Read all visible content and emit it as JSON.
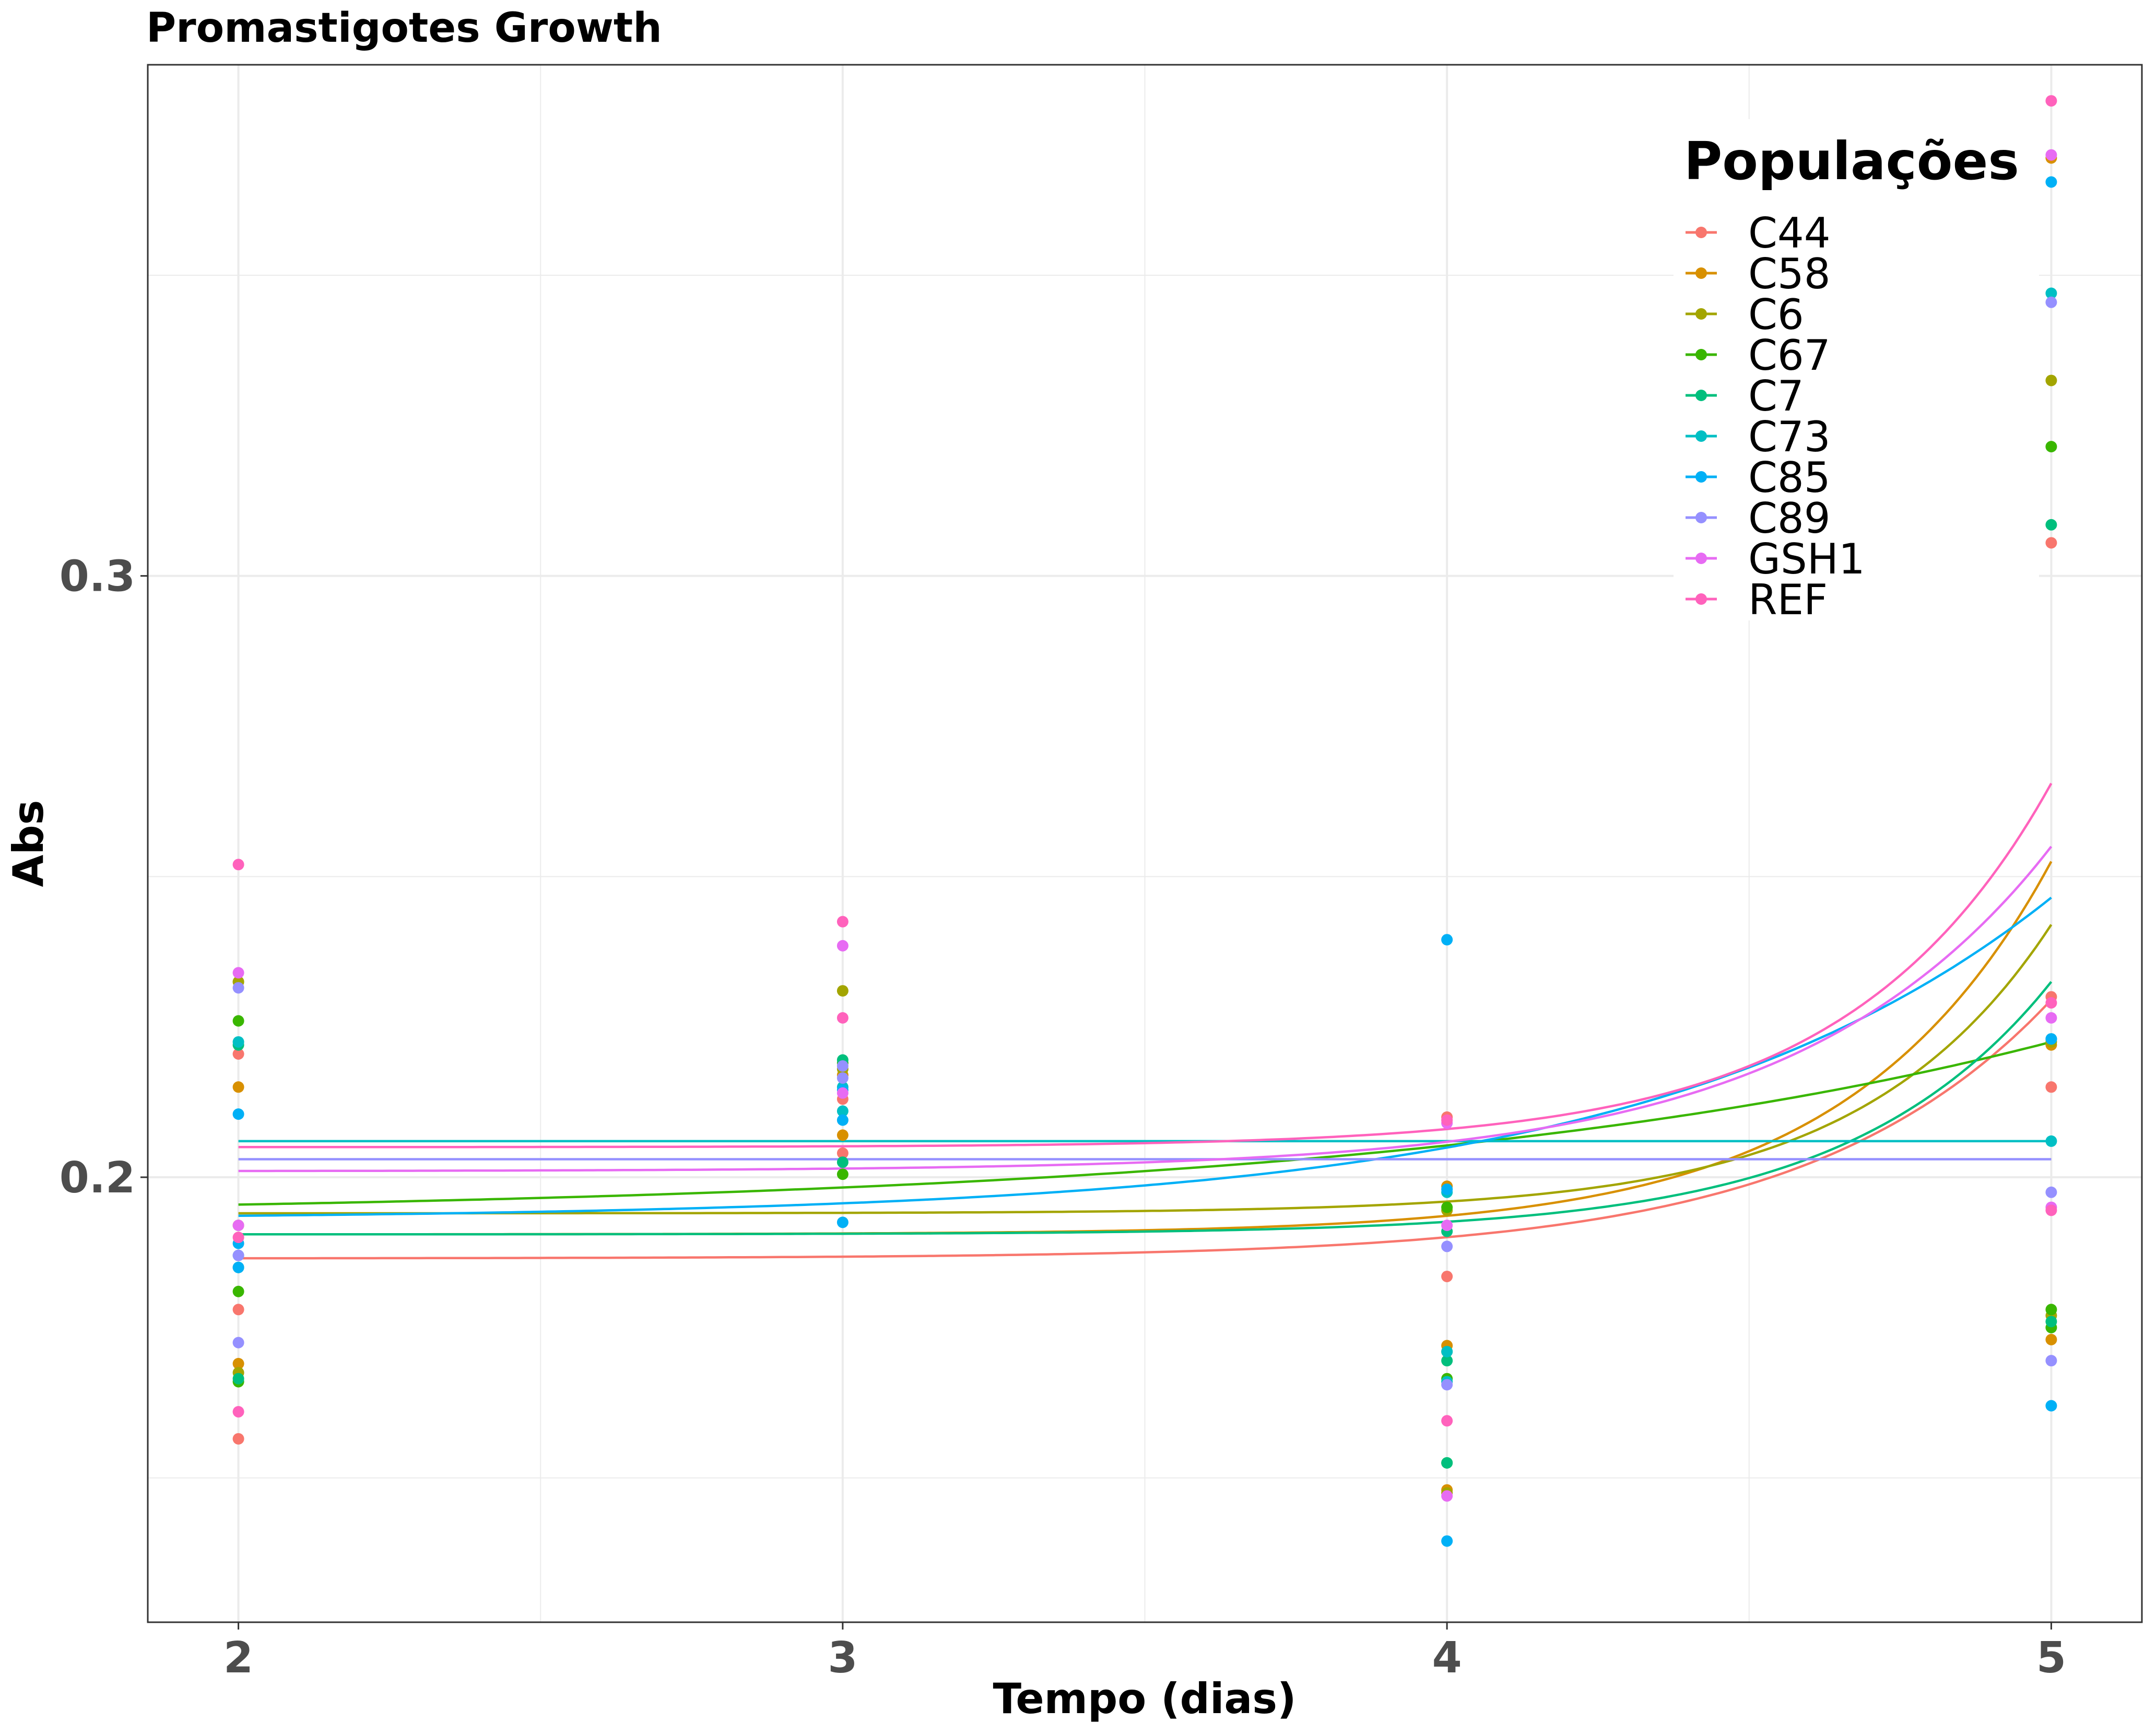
{
  "chart_data": {
    "type": "scatter",
    "title": "Promastigotes Growth",
    "xlabel": "Tempo (dias)",
    "ylabel": "Abs",
    "xlim": [
      1.85,
      5.15
    ],
    "ylim": [
      0.126,
      0.385
    ],
    "x_ticks": [
      2,
      3,
      4,
      5
    ],
    "x_tick_labels": [
      "2",
      "3",
      "4",
      "5"
    ],
    "y_ticks": [
      0.2,
      0.3
    ],
    "y_tick_labels": [
      "0.2",
      "0.3"
    ],
    "y_minor_gridlines": [
      0.15,
      0.25,
      0.35
    ],
    "x_minor_gridlines": [
      2.5,
      3.5,
      4.5
    ],
    "grid": true,
    "legend": {
      "title": "Populações",
      "position": "top-right"
    },
    "series": [
      {
        "name": "C44",
        "color": "#F8766D",
        "points": [
          [
            2,
            0.1565
          ],
          [
            2,
            0.178
          ],
          [
            2,
            0.2205
          ],
          [
            3,
            0.204
          ],
          [
            3,
            0.213
          ],
          [
            4,
            0.1835
          ],
          [
            4,
            0.21
          ],
          [
            5,
            0.3055
          ],
          [
            5,
            0.215
          ],
          [
            5,
            0.23
          ]
        ],
        "fit": {
          "a": 0.1865,
          "b": 0.043,
          "k": 2.5
        }
      },
      {
        "name": "C58",
        "color": "#D89000",
        "points": [
          [
            2,
            0.169
          ],
          [
            2,
            0.215
          ],
          [
            2,
            0.2325
          ],
          [
            3,
            0.207
          ],
          [
            3,
            0.217
          ],
          [
            4,
            0.172
          ],
          [
            4,
            0.148
          ],
          [
            4,
            0.1985
          ],
          [
            5,
            0.3695
          ],
          [
            5,
            0.222
          ],
          [
            5,
            0.173
          ]
        ],
        "fit": {
          "a": 0.1905,
          "b": 0.062,
          "k": 3.0
        }
      },
      {
        "name": "C6",
        "color": "#A3A500",
        "points": [
          [
            2,
            0.1675
          ],
          [
            2,
            0.192
          ],
          [
            2,
            0.2325
          ],
          [
            3,
            0.231
          ],
          [
            3,
            0.218
          ],
          [
            4,
            0.171
          ],
          [
            4,
            0.1475
          ],
          [
            4,
            0.1945
          ],
          [
            5,
            0.3325
          ],
          [
            5,
            0.2225
          ],
          [
            5,
            0.177
          ]
        ],
        "fit": {
          "a": 0.194,
          "b": 0.048,
          "k": 3.2
        }
      },
      {
        "name": "C67",
        "color": "#39B600",
        "points": [
          [
            2,
            0.166
          ],
          [
            2,
            0.181
          ],
          [
            2,
            0.226
          ],
          [
            3,
            0.2005
          ],
          [
            3,
            0.219
          ],
          [
            4,
            0.1665
          ],
          [
            4,
            0.1525
          ],
          [
            4,
            0.195
          ],
          [
            5,
            0.3215
          ],
          [
            5,
            0.178
          ],
          [
            5,
            0.175
          ]
        ],
        "fit": {
          "a": 0.1935,
          "b": 0.029,
          "k": 0.9
        }
      },
      {
        "name": "C7",
        "color": "#00BF7D",
        "points": [
          [
            2,
            0.1665
          ],
          [
            2,
            0.185
          ],
          [
            2,
            0.222
          ],
          [
            3,
            0.2025
          ],
          [
            3,
            0.2195
          ],
          [
            4,
            0.1695
          ],
          [
            4,
            0.1525
          ],
          [
            4,
            0.191
          ],
          [
            5,
            0.3085
          ],
          [
            5,
            0.223
          ],
          [
            5,
            0.176
          ]
        ],
        "fit": {
          "a": 0.1905,
          "b": 0.042,
          "k": 3.0
        }
      },
      {
        "name": "C73",
        "color": "#00BFC4",
        "points": [
          [
            2,
            0.187
          ],
          [
            2,
            0.2225
          ],
          [
            3,
            0.215
          ],
          [
            3,
            0.211
          ],
          [
            4,
            0.171
          ],
          [
            4,
            0.166
          ],
          [
            4,
            0.1975
          ],
          [
            5,
            0.347
          ],
          [
            5,
            0.223
          ],
          [
            5,
            0.206
          ]
        ],
        "fit": {
          "a": 0.206,
          "b": 0.0,
          "k": 1.0
        }
      },
      {
        "name": "C85",
        "color": "#00B0F6",
        "points": [
          [
            2,
            0.185
          ],
          [
            2,
            0.2105
          ],
          [
            2,
            0.189
          ],
          [
            3,
            0.1925
          ],
          [
            3,
            0.2095
          ],
          [
            3,
            0.2145
          ],
          [
            4,
            0.2395
          ],
          [
            4,
            0.1395
          ],
          [
            4,
            0.198
          ],
          [
            5,
            0.3655
          ],
          [
            5,
            0.223
          ],
          [
            5,
            0.162
          ]
        ],
        "fit": {
          "a": 0.193,
          "b": 0.0535,
          "k": 1.5
        }
      },
      {
        "name": "C89",
        "color": "#9590FF",
        "points": [
          [
            2,
            0.1725
          ],
          [
            2,
            0.187
          ],
          [
            2,
            0.2315
          ],
          [
            3,
            0.2165
          ],
          [
            3,
            0.2185
          ],
          [
            4,
            0.1655
          ],
          [
            4,
            0.1885
          ],
          [
            5,
            0.3455
          ],
          [
            5,
            0.1975
          ],
          [
            5,
            0.1695
          ]
        ],
        "fit": {
          "a": 0.203,
          "b": 0.0,
          "k": 1.0
        }
      },
      {
        "name": "GSH1",
        "color": "#E76BF3",
        "points": [
          [
            2,
            0.192
          ],
          [
            2,
            0.234
          ],
          [
            3,
            0.2385
          ],
          [
            3,
            0.214
          ],
          [
            4,
            0.192
          ],
          [
            4,
            0.147
          ],
          [
            4,
            0.209
          ],
          [
            5,
            0.37
          ],
          [
            5,
            0.2265
          ],
          [
            5,
            0.195
          ]
        ],
        "fit": {
          "a": 0.201,
          "b": 0.054,
          "k": 2.4
        }
      },
      {
        "name": "REF",
        "color": "#FF62BC",
        "points": [
          [
            2,
            0.252
          ],
          [
            2,
            0.161
          ],
          [
            2,
            0.19
          ],
          [
            3,
            0.2425
          ],
          [
            3,
            0.2265
          ],
          [
            4,
            0.1595
          ],
          [
            4,
            0.2095
          ],
          [
            5,
            0.379
          ],
          [
            5,
            0.229
          ],
          [
            5,
            0.1945
          ]
        ],
        "fit": {
          "a": 0.205,
          "b": 0.0605,
          "k": 3.0
        }
      }
    ]
  }
}
